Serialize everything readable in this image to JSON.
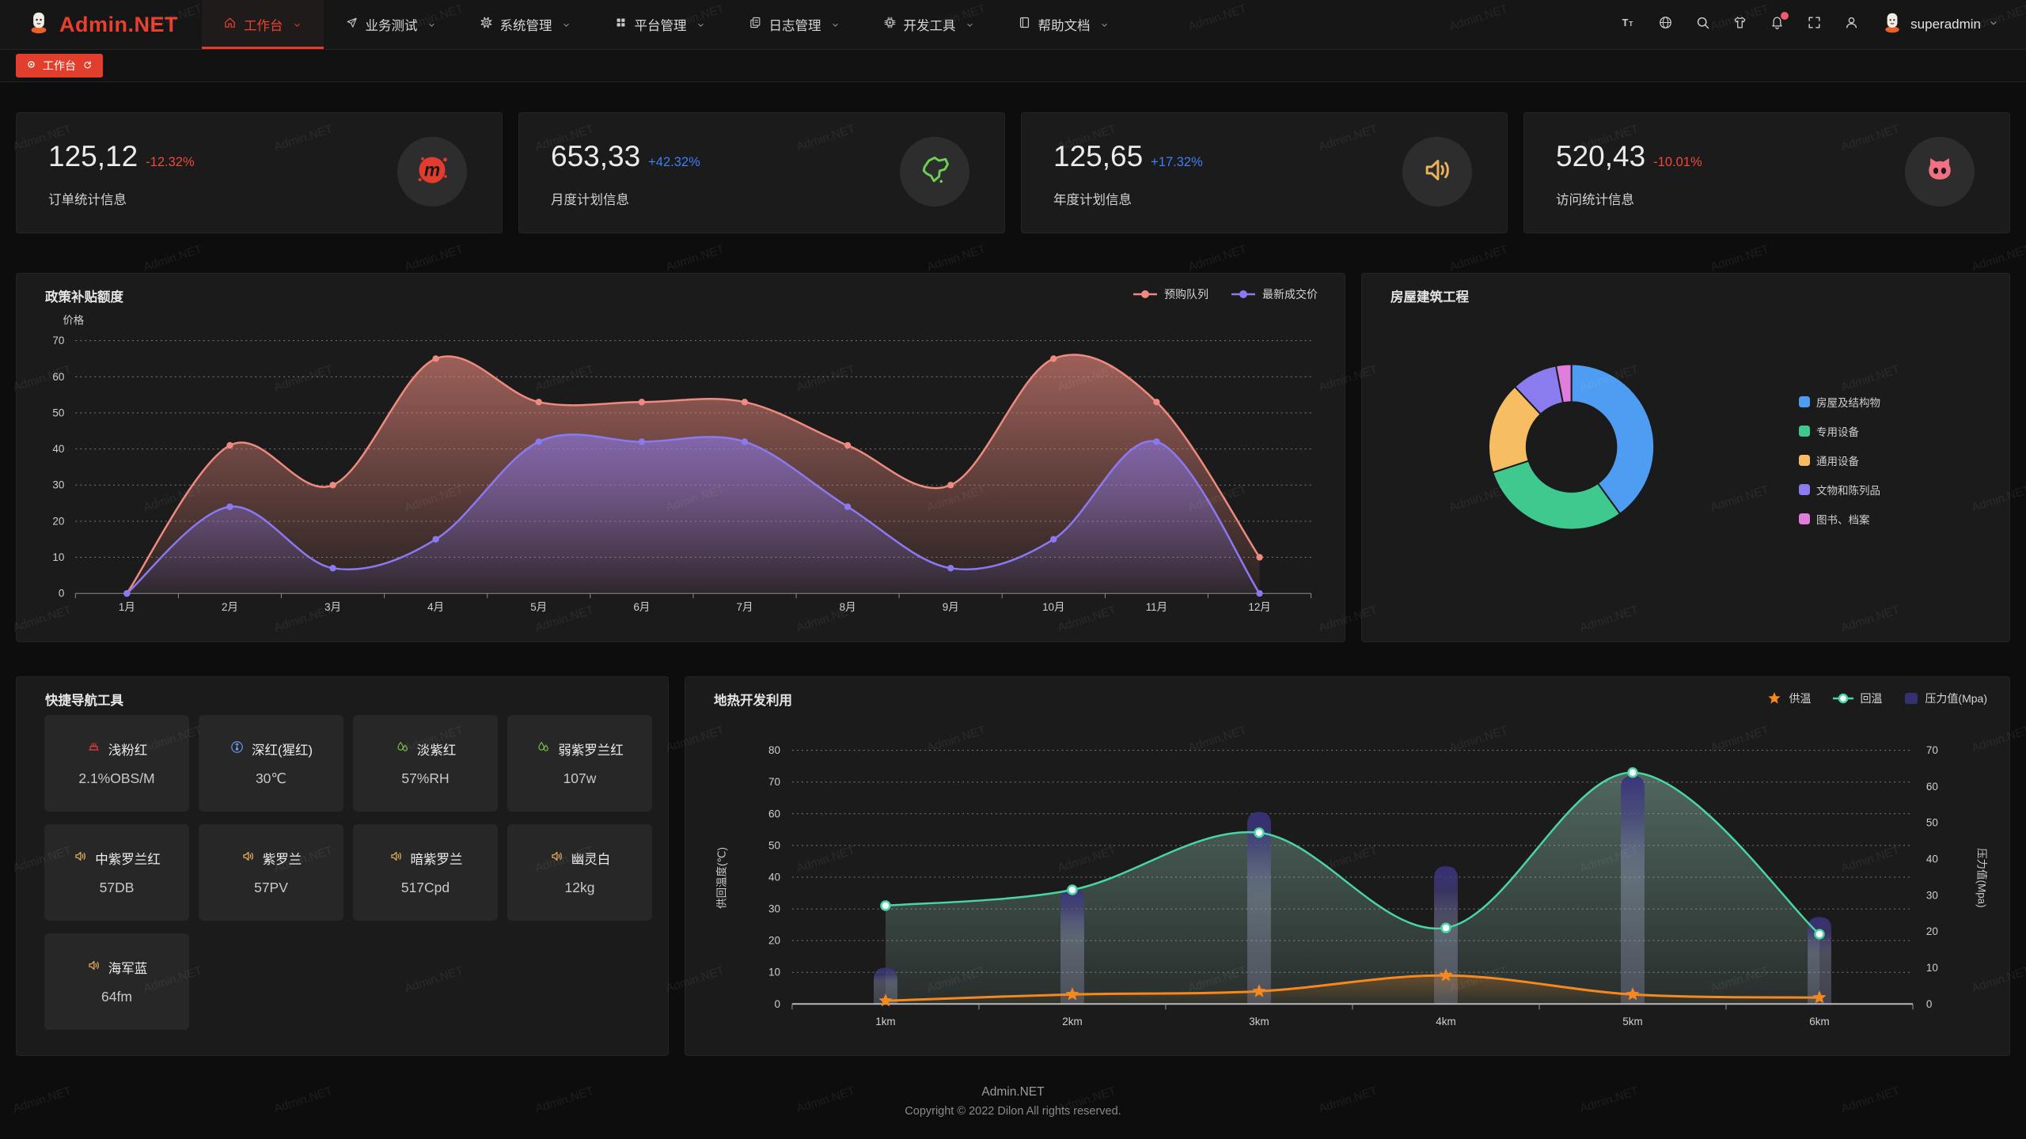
{
  "brand": {
    "name": "Admin.NET",
    "accent": "#e8402f"
  },
  "navbar": {
    "menu": [
      {
        "label": "工作台",
        "icon": "home",
        "active": true
      },
      {
        "label": "业务测试",
        "icon": "send",
        "active": false
      },
      {
        "label": "系统管理",
        "icon": "gear",
        "active": false
      },
      {
        "label": "平台管理",
        "icon": "grid",
        "active": false
      },
      {
        "label": "日志管理",
        "icon": "document",
        "active": false
      },
      {
        "label": "开发工具",
        "icon": "chip",
        "active": false
      },
      {
        "label": "帮助文档",
        "icon": "book",
        "active": false
      }
    ],
    "tools": [
      {
        "name": "font-size",
        "icon": "fontsize",
        "badge": false
      },
      {
        "name": "language",
        "icon": "globe",
        "badge": false
      },
      {
        "name": "search",
        "icon": "search",
        "badge": false
      },
      {
        "name": "theme",
        "icon": "shirt",
        "badge": false
      },
      {
        "name": "notifications",
        "icon": "bell",
        "badge": true
      },
      {
        "name": "fullscreen",
        "icon": "fullscreen",
        "badge": false
      },
      {
        "name": "profile",
        "icon": "person",
        "badge": false
      }
    ],
    "user": {
      "name": "superadmin"
    }
  },
  "tabbar": {
    "tabs": [
      {
        "label": "工作台",
        "active": true
      }
    ]
  },
  "stat_cards": [
    {
      "value": "125,12",
      "delta": "-12.32%",
      "delta_color": "#f0483c",
      "title": "订单统计信息",
      "icon": "meetup",
      "icon_color": "#e23c2f"
    },
    {
      "value": "653,33",
      "delta": "+42.32%",
      "delta_color": "#3f7ef7",
      "title": "月度计划信息",
      "icon": "china",
      "icon_color": "#6fce55"
    },
    {
      "value": "125,65",
      "delta": "+17.32%",
      "delta_color": "#3f7ef7",
      "title": "年度计划信息",
      "icon": "speaker",
      "icon_color": "#edb15b"
    },
    {
      "value": "520,43",
      "delta": "-10.01%",
      "delta_color": "#f0483c",
      "title": "访问统计信息",
      "icon": "cat",
      "icon_color": "#f17183"
    }
  ],
  "chart_data": [
    {
      "type": "area",
      "title": "政策补贴额度",
      "ylabel": "价格",
      "categories": [
        "1月",
        "2月",
        "3月",
        "4月",
        "5月",
        "6月",
        "7月",
        "8月",
        "9月",
        "10月",
        "11月",
        "12月"
      ],
      "ylim": [
        0,
        70
      ],
      "grid": "dashed",
      "legend_position": "top-right",
      "series": [
        {
          "name": "预购队列",
          "color": "#ee8a7f",
          "values": [
            0,
            41,
            30,
            65,
            53,
            53,
            53,
            41,
            30,
            65,
            53,
            10
          ]
        },
        {
          "name": "最新成交价",
          "color": "#8a79f0",
          "values": [
            0,
            24,
            7,
            15,
            42,
            42,
            42,
            24,
            7,
            15,
            42,
            0
          ]
        }
      ]
    },
    {
      "type": "pie",
      "title": "房屋建筑工程",
      "donut": true,
      "legend_position": "right",
      "slices": [
        {
          "label": "房屋及结构物",
          "value": 40,
          "color": "#4e9df2"
        },
        {
          "label": "专用设备",
          "value": 30,
          "color": "#3fc98e"
        },
        {
          "label": "通用设备",
          "value": 18,
          "color": "#f6bd62"
        },
        {
          "label": "文物和陈列品",
          "value": 9,
          "color": "#8a7cee"
        },
        {
          "label": "图书、档案",
          "value": 3,
          "color": "#e07ddd"
        }
      ]
    },
    {
      "type": "line+bar",
      "title": "地热开发利用",
      "categories": [
        "1km",
        "2km",
        "3km",
        "4km",
        "5km",
        "6km"
      ],
      "ylabel_left": "供回温度(℃)",
      "ylim_left": [
        0,
        80
      ],
      "ylabel_right": "压力值(Mpa)",
      "ylim_right": [
        0,
        70
      ],
      "grid": "dashed",
      "series": [
        {
          "name": "供温",
          "type": "line",
          "marker": "star",
          "axis": "left",
          "color": "#f5891f",
          "values": [
            1,
            3,
            4,
            9,
            3,
            2
          ]
        },
        {
          "name": "回温",
          "type": "line",
          "marker": "circle",
          "axis": "left",
          "color": "#49d6a2",
          "values": [
            31,
            36,
            54,
            24,
            73,
            22
          ]
        },
        {
          "name": "压力值(Mpa)",
          "type": "bar",
          "axis": "right",
          "color": "#37307a",
          "values": [
            10,
            32,
            53,
            38,
            63,
            24
          ]
        }
      ]
    }
  ],
  "quick_nav": {
    "title": "快捷导航工具",
    "tiles": [
      {
        "icon": "cake",
        "icon_color": "#dd3e36",
        "name": "浅粉红",
        "value": "2.1%OBS/M"
      },
      {
        "icon": "thermometer",
        "icon_color": "#6b95e8",
        "name": "深红(猩红)",
        "value": "30℃"
      },
      {
        "icon": "drops",
        "icon_color": "#71c244",
        "name": "淡紫红",
        "value": "57%RH"
      },
      {
        "icon": "drops",
        "icon_color": "#71c244",
        "name": "弱紫罗兰红",
        "value": "107w"
      },
      {
        "icon": "speaker",
        "icon_color": "#e0aa5e",
        "name": "中紫罗兰红",
        "value": "57DB"
      },
      {
        "icon": "speaker",
        "icon_color": "#e0aa5e",
        "name": "紫罗兰",
        "value": "57PV"
      },
      {
        "icon": "speaker",
        "icon_color": "#e0aa5e",
        "name": "暗紫罗兰",
        "value": "517Cpd"
      },
      {
        "icon": "speaker",
        "icon_color": "#e0aa5e",
        "name": "幽灵白",
        "value": "12kg"
      },
      {
        "icon": "speaker",
        "icon_color": "#e0aa5e",
        "name": "海军蓝",
        "value": "64fm"
      }
    ]
  },
  "footer": {
    "line1": "Admin.NET",
    "line2": "Copyright © 2022 Dilon All rights reserved."
  },
  "watermark": {
    "text": "Admin.NET"
  }
}
